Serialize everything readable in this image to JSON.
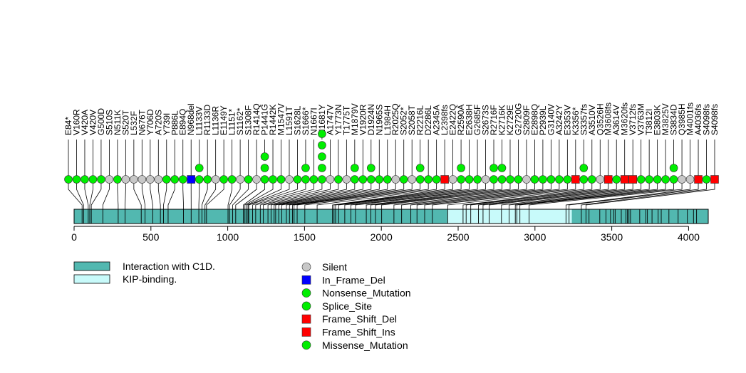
{
  "chart_data": {
    "type": "lollipop",
    "xlim": [
      0,
      4128
    ],
    "x_ticks": [
      0,
      500,
      1000,
      1500,
      2000,
      2500,
      3000,
      3500,
      4000
    ],
    "colors": {
      "Silent": "#c8c8c8",
      "In_Frame_Del": "#0000ff",
      "Nonsense_Mutation": "#00ee00",
      "Splice_Site": "#00ee00",
      "Frame_Shift_Del": "#ff0000",
      "Frame_Shift_Ins": "#ff0000",
      "Missense_Mutation": "#00ee00",
      "domain_interaction": "#52b8b0",
      "domain_kip": "#c8fafa"
    },
    "domains": [
      {
        "name": "Interaction with C1D.",
        "start": 0,
        "end": 2430,
        "color": "#52b8b0"
      },
      {
        "name": "KIP-binding.",
        "start": 2430,
        "end": 3240,
        "color": "#c8fafa"
      },
      {
        "name": "Interaction with C1D.",
        "start": 3240,
        "end": 4128,
        "color": "#52b8b0"
      }
    ],
    "domain_ticks": [
      52,
      62,
      92,
      102,
      112,
      187,
      287,
      332,
      437,
      462,
      512,
      562,
      582,
      612,
      712,
      762,
      812,
      832,
      852,
      862,
      1002,
      1012,
      1032,
      1052,
      1102,
      1112,
      1122,
      1132,
      1137,
      1162,
      1182,
      1212,
      1232,
      1262,
      1282,
      1302,
      1312,
      1332,
      1352,
      1382,
      1402,
      1422,
      1432,
      1452,
      1502,
      1582,
      1682,
      1692,
      1702,
      1722,
      1762,
      1802,
      1832,
      1902,
      1932,
      1962,
      2002,
      2082,
      2132,
      2192,
      2232,
      2282,
      2332,
      2432,
      2532,
      2552,
      2582,
      2632,
      2662,
      2702,
      2782,
      2832,
      2872,
      2882,
      2902,
      2962,
      3202,
      3222,
      3302,
      3332,
      3352,
      3422,
      3462,
      3492,
      3512,
      3522,
      3562,
      3592,
      3602,
      3612,
      3622,
      3682,
      3722,
      3732,
      3762,
      3802,
      3822,
      3872,
      3932,
      3992,
      4032,
      4052
    ],
    "mutations": [
      {
        "label": "E84*",
        "count": 1,
        "type": "Missense_Mutation"
      },
      {
        "label": "V160R",
        "count": 1,
        "type": "Missense_Mutation"
      },
      {
        "label": "V420A",
        "count": 1,
        "type": "Missense_Mutation"
      },
      {
        "label": "V420V",
        "count": 1,
        "type": "Missense_Mutation"
      },
      {
        "label": "G500D",
        "count": 1,
        "type": "Missense_Mutation"
      },
      {
        "label": "S510S",
        "count": 1,
        "type": "Silent"
      },
      {
        "label": "N511K",
        "count": 1,
        "type": "Missense_Mutation"
      },
      {
        "label": "S520T",
        "count": 1,
        "type": "Silent"
      },
      {
        "label": "L532F",
        "count": 1,
        "type": "Silent"
      },
      {
        "label": "N676T",
        "count": 1,
        "type": "Silent"
      },
      {
        "label": "Y706D",
        "count": 1,
        "type": "Silent"
      },
      {
        "label": "A720S",
        "count": 1,
        "type": "Silent"
      },
      {
        "label": "Y739I",
        "count": 1,
        "type": "Missense_Mutation"
      },
      {
        "label": "P886L",
        "count": 1,
        "type": "Missense_Mutation"
      },
      {
        "label": "E894Q",
        "count": 1,
        "type": "Missense_Mutation"
      },
      {
        "label": "N968del",
        "count": 1,
        "type": "In_Frame_Del"
      },
      {
        "label": "L1133V",
        "count": 2,
        "type": "Missense_Mutation"
      },
      {
        "label": "R1133D",
        "count": 1,
        "type": "Missense_Mutation"
      },
      {
        "label": "L1136R",
        "count": 1,
        "type": "Silent"
      },
      {
        "label": "E1149Y",
        "count": 1,
        "type": "Missense_Mutation"
      },
      {
        "label": "L1151*",
        "count": 1,
        "type": "Missense_Mutation"
      },
      {
        "label": "S1162*",
        "count": 1,
        "type": "Silent"
      },
      {
        "label": "S1308F",
        "count": 1,
        "type": "Missense_Mutation"
      },
      {
        "label": "R1414Q",
        "count": 1,
        "type": "Silent"
      },
      {
        "label": "P1441G",
        "count": 3,
        "type": "Missense_Mutation"
      },
      {
        "label": "R1442K",
        "count": 1,
        "type": "Missense_Mutation"
      },
      {
        "label": "M1547V",
        "count": 1,
        "type": "Missense_Mutation"
      },
      {
        "label": "L1591T",
        "count": 1,
        "type": "Silent"
      },
      {
        "label": "S1628L",
        "count": 1,
        "type": "Missense_Mutation"
      },
      {
        "label": "S1666*",
        "count": 2,
        "type": "Missense_Mutation"
      },
      {
        "label": "N1667I",
        "count": 1,
        "type": "Missense_Mutation"
      },
      {
        "label": "N1681Y",
        "count": 5,
        "type": "Missense_Mutation"
      },
      {
        "label": "A1747V",
        "count": 1,
        "type": "Silent"
      },
      {
        "label": "Y1773N",
        "count": 1,
        "type": "Missense_Mutation"
      },
      {
        "label": "T1775T",
        "count": 1,
        "type": "Silent"
      },
      {
        "label": "M1879V",
        "count": 2,
        "type": "Missense_Mutation"
      },
      {
        "label": "V1920R",
        "count": 1,
        "type": "Missense_Mutation"
      },
      {
        "label": "D1924N",
        "count": 2,
        "type": "Missense_Mutation"
      },
      {
        "label": "N1965S",
        "count": 1,
        "type": "Missense_Mutation"
      },
      {
        "label": "L1984H",
        "count": 1,
        "type": "Missense_Mutation"
      },
      {
        "label": "R2025Q",
        "count": 1,
        "type": "Silent"
      },
      {
        "label": "S2052*",
        "count": 1,
        "type": "Missense_Mutation"
      },
      {
        "label": "S2058T",
        "count": 1,
        "type": "Silent"
      },
      {
        "label": "R2216L",
        "count": 2,
        "type": "Missense_Mutation"
      },
      {
        "label": "D2286L",
        "count": 1,
        "type": "Missense_Mutation"
      },
      {
        "label": "A2345A",
        "count": 1,
        "type": "Missense_Mutation"
      },
      {
        "label": "L2398fs",
        "count": 1,
        "type": "Frame_Shift_Del"
      },
      {
        "label": "E2422Q",
        "count": 1,
        "type": "Silent"
      },
      {
        "label": "R2590A",
        "count": 2,
        "type": "Missense_Mutation"
      },
      {
        "label": "E2638H",
        "count": 1,
        "type": "Missense_Mutation"
      },
      {
        "label": "G2685F",
        "count": 1,
        "type": "Missense_Mutation"
      },
      {
        "label": "S2673S",
        "count": 1,
        "type": "Silent"
      },
      {
        "label": "R2716F",
        "count": 2,
        "type": "Missense_Mutation"
      },
      {
        "label": "K2716K",
        "count": 2,
        "type": "Missense_Mutation"
      },
      {
        "label": "K2729E",
        "count": 1,
        "type": "Missense_Mutation"
      },
      {
        "label": "G2720G",
        "count": 1,
        "type": "Missense_Mutation"
      },
      {
        "label": "S2809F",
        "count": 1,
        "type": "Silent"
      },
      {
        "label": "E2898Q",
        "count": 1,
        "type": "Missense_Mutation"
      },
      {
        "label": "P2939L",
        "count": 1,
        "type": "Missense_Mutation"
      },
      {
        "label": "G3140V",
        "count": 1,
        "type": "Missense_Mutation"
      },
      {
        "label": "A3242Y",
        "count": 1,
        "type": "Missense_Mutation"
      },
      {
        "label": "E3353V",
        "count": 1,
        "type": "Missense_Mutation"
      },
      {
        "label": "K3356*",
        "count": 1,
        "type": "Frame_Shift_Del"
      },
      {
        "label": "S3357fs",
        "count": 2,
        "type": "Missense_Mutation"
      },
      {
        "label": "A3510V",
        "count": 1,
        "type": "Missense_Mutation"
      },
      {
        "label": "Q3526H",
        "count": 1,
        "type": "Silent"
      },
      {
        "label": "M3608fs",
        "count": 1,
        "type": "Frame_Shift_Del"
      },
      {
        "label": "A3614V",
        "count": 1,
        "type": "Missense_Mutation"
      },
      {
        "label": "M3620fs",
        "count": 1,
        "type": "Frame_Shift_Del"
      },
      {
        "label": "V3712fs",
        "count": 1,
        "type": "Frame_Shift_Ins"
      },
      {
        "label": "V3763M",
        "count": 1,
        "type": "Missense_Mutation"
      },
      {
        "label": "T3812I",
        "count": 1,
        "type": "Missense_Mutation"
      },
      {
        "label": "E3803K",
        "count": 1,
        "type": "Missense_Mutation"
      },
      {
        "label": "M3825V",
        "count": 1,
        "type": "Missense_Mutation"
      },
      {
        "label": "S3834D",
        "count": 2,
        "type": "Missense_Mutation"
      },
      {
        "label": "Q3985H",
        "count": 1,
        "type": "Silent"
      },
      {
        "label": "M4001fs",
        "count": 1,
        "type": "Silent"
      },
      {
        "label": "A4036fs",
        "count": 1,
        "type": "Frame_Shift_Del"
      },
      {
        "label": "S4098fs",
        "count": 1,
        "type": "Missense_Mutation"
      },
      {
        "label": "S4098fs",
        "count": 1,
        "type": "Frame_Shift_Del"
      }
    ],
    "legend": {
      "domains": [
        {
          "label": "Interaction with C1D.",
          "color": "#52b8b0"
        },
        {
          "label": "KIP-binding.",
          "color": "#c8fafa"
        }
      ],
      "mutation_types": [
        {
          "label": "Silent",
          "color": "#c8c8c8",
          "shape": "circle"
        },
        {
          "label": "In_Frame_Del",
          "color": "#0000ff",
          "shape": "square"
        },
        {
          "label": "Nonsense_Mutation",
          "color": "#00ee00",
          "shape": "circle"
        },
        {
          "label": "Splice_Site",
          "color": "#00ee00",
          "shape": "circle"
        },
        {
          "label": "Frame_Shift_Del",
          "color": "#ff0000",
          "shape": "square"
        },
        {
          "label": "Frame_Shift_Ins",
          "color": "#ff0000",
          "shape": "square"
        },
        {
          "label": "Missense_Mutation",
          "color": "#00ee00",
          "shape": "circle"
        }
      ]
    }
  }
}
